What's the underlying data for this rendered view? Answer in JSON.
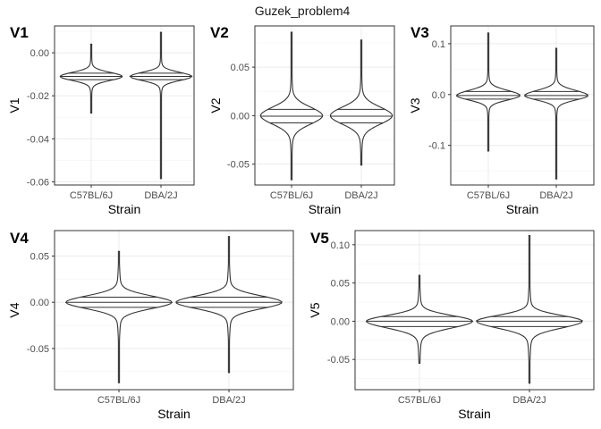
{
  "figure": {
    "title": "Guzek_problem4"
  },
  "chart_data": [
    {
      "type": "violin",
      "tag": "V1",
      "xlabel": "Strain",
      "ylabel": "V1",
      "categories": [
        "C57BL/6J",
        "DBA/2J"
      ],
      "ylim": [
        -0.0615,
        0.0125
      ],
      "yticks": [
        0.0,
        -0.02,
        -0.04,
        -0.06
      ],
      "ytick_labels": [
        "0.00",
        "-0.02",
        "-0.04",
        "-0.06"
      ],
      "series": [
        {
          "category": "C57BL/6J",
          "min": -0.028,
          "max": 0.004,
          "q1": -0.0125,
          "median": -0.011,
          "q3": -0.0095,
          "center": -0.011
        },
        {
          "category": "DBA/2J",
          "min": -0.0585,
          "max": 0.0095,
          "q1": -0.0125,
          "median": -0.011,
          "q3": -0.0095,
          "center": -0.011
        }
      ]
    },
    {
      "type": "violin",
      "tag": "V2",
      "xlabel": "Strain",
      "ylabel": "V2",
      "categories": [
        "C57BL/6J",
        "DBA/2J"
      ],
      "ylim": [
        -0.0715,
        0.0925
      ],
      "yticks": [
        0.05,
        0.0,
        -0.05
      ],
      "ytick_labels": [
        "0.05",
        "0.00",
        "-0.05"
      ],
      "series": [
        {
          "category": "C57BL/6J",
          "min": -0.066,
          "max": 0.086,
          "q1": -0.0075,
          "median": -0.0005,
          "q3": 0.0065,
          "center": 0.0
        },
        {
          "category": "DBA/2J",
          "min": -0.051,
          "max": 0.078,
          "q1": -0.0075,
          "median": -0.0005,
          "q3": 0.0065,
          "center": 0.0
        }
      ]
    },
    {
      "type": "violin",
      "tag": "V3",
      "xlabel": "Strain",
      "ylabel": "V3",
      "categories": [
        "C57BL/6J",
        "DBA/2J"
      ],
      "ylim": [
        -0.178,
        0.135
      ],
      "yticks": [
        0.1,
        0.0,
        -0.1
      ],
      "ytick_labels": [
        "0.1",
        "0.0",
        "-0.1"
      ],
      "series": [
        {
          "category": "C57BL/6J",
          "min": -0.111,
          "max": 0.121,
          "q1": -0.009,
          "median": -0.002,
          "q3": 0.006,
          "center": -0.002
        },
        {
          "category": "DBA/2J",
          "min": -0.166,
          "max": 0.091,
          "q1": -0.009,
          "median": -0.002,
          "q3": 0.006,
          "center": -0.002
        }
      ]
    },
    {
      "type": "violin",
      "tag": "V4",
      "xlabel": "Strain",
      "ylabel": "V4",
      "categories": [
        "C57BL/6J",
        "DBA/2J"
      ],
      "ylim": [
        -0.0945,
        0.0775
      ],
      "yticks": [
        0.05,
        0.0,
        -0.05
      ],
      "ytick_labels": [
        "0.05",
        "0.00",
        "-0.05"
      ],
      "series": [
        {
          "category": "C57BL/6J",
          "min": -0.087,
          "max": 0.055,
          "q1": -0.0055,
          "median": 0.0,
          "q3": 0.0055,
          "center": 0.0
        },
        {
          "category": "DBA/2J",
          "min": -0.076,
          "max": 0.071,
          "q1": -0.0055,
          "median": 0.0,
          "q3": 0.0055,
          "center": 0.0
        }
      ]
    },
    {
      "type": "violin",
      "tag": "V5",
      "xlabel": "Strain",
      "ylabel": "V5",
      "categories": [
        "C57BL/6J",
        "DBA/2J"
      ],
      "ylim": [
        -0.0895,
        0.1185
      ],
      "yticks": [
        0.1,
        0.05,
        0.0,
        -0.05
      ],
      "ytick_labels": [
        "0.10",
        "0.05",
        "0.00",
        "-0.05"
      ],
      "series": [
        {
          "category": "C57BL/6J",
          "min": -0.055,
          "max": 0.06,
          "q1": -0.007,
          "median": 0.0,
          "q3": 0.006,
          "center": 0.0
        },
        {
          "category": "DBA/2J",
          "min": -0.081,
          "max": 0.112,
          "q1": -0.007,
          "median": 0.0,
          "q3": 0.006,
          "center": 0.0
        }
      ]
    }
  ]
}
